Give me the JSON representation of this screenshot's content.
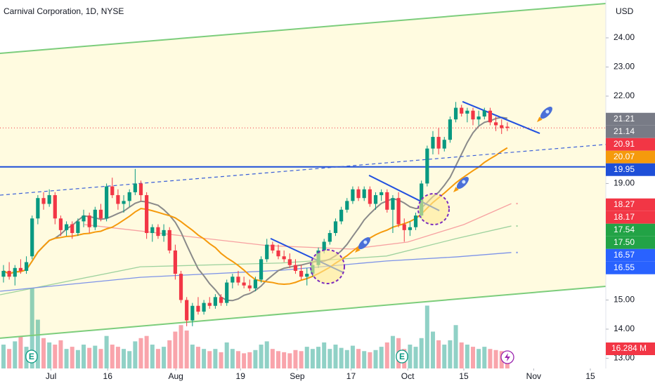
{
  "chart_data": {
    "type": "candlestick",
    "title": "Carnival Corporation, 1D, NYSE",
    "currency": "USD",
    "xlim": [
      -9.61,
      96.2
    ],
    "xticks": [
      {
        "value": -0.7,
        "label": "Jul"
      },
      {
        "value": 9.2,
        "label": "16"
      },
      {
        "value": 21.1,
        "label": "Aug"
      },
      {
        "value": 32.4,
        "label": "19"
      },
      {
        "value": 42.3,
        "label": "Sep"
      },
      {
        "value": 51.7,
        "label": "17"
      },
      {
        "value": 61.6,
        "label": "Oct"
      },
      {
        "value": 71.4,
        "label": "15"
      },
      {
        "value": 83.6,
        "label": "Nov"
      },
      {
        "value": 93.5,
        "label": "15"
      }
    ],
    "ylim": [
      12.65,
      25.3
    ],
    "yticks": [
      {
        "value": 13,
        "label": "13.00"
      },
      {
        "value": 14,
        "label": "14.00"
      },
      {
        "value": 15,
        "label": "15.00"
      },
      {
        "value": 19,
        "label": "19.00"
      },
      {
        "value": 22,
        "label": "22.00"
      },
      {
        "value": 23,
        "label": "23.00"
      },
      {
        "value": 24,
        "label": "24.00"
      }
    ],
    "up_color": "#089981",
    "down_color": "#f23645",
    "x": [
      -9,
      -8,
      -7,
      -6,
      -5,
      -4,
      -3,
      -2,
      -1,
      0,
      1,
      2,
      3,
      4,
      5,
      6,
      7,
      8,
      9,
      10,
      11,
      12,
      13,
      14,
      15,
      16,
      17,
      18,
      19,
      20,
      21,
      22,
      23,
      24,
      25,
      26,
      27,
      28,
      29,
      30,
      31,
      32,
      33,
      34,
      35,
      36,
      37,
      38,
      39,
      40,
      41,
      42,
      43,
      44,
      45,
      46,
      47,
      48,
      49,
      50,
      51,
      52,
      53,
      54,
      55,
      56,
      57,
      58,
      59,
      60,
      61,
      62,
      63,
      64,
      65,
      66,
      67,
      68,
      69,
      70,
      71,
      72,
      73,
      74,
      75,
      76,
      77,
      78,
      79
    ],
    "ohlc": [
      [
        15.8,
        16.2,
        15.6,
        16.0
      ],
      [
        16.0,
        16.3,
        15.7,
        15.8
      ],
      [
        15.8,
        16.2,
        15.5,
        16.1
      ],
      [
        16.1,
        16.4,
        15.9,
        16.0
      ],
      [
        16.0,
        16.5,
        15.9,
        16.3
      ],
      [
        16.5,
        17.9,
        16.4,
        17.8
      ],
      [
        17.8,
        18.6,
        17.6,
        18.5
      ],
      [
        18.5,
        18.7,
        18.1,
        18.3
      ],
      [
        18.3,
        18.8,
        18.2,
        18.6
      ],
      [
        18.6,
        18.7,
        17.6,
        17.8
      ],
      [
        17.8,
        17.9,
        17.2,
        17.4
      ],
      [
        17.4,
        17.7,
        17.2,
        17.6
      ],
      [
        17.6,
        17.7,
        17.1,
        17.3
      ],
      [
        17.3,
        17.8,
        17.2,
        17.7
      ],
      [
        17.7,
        18.1,
        17.5,
        17.9
      ],
      [
        17.9,
        18.0,
        17.3,
        17.5
      ],
      [
        17.5,
        18.2,
        17.4,
        18.1
      ],
      [
        18.1,
        18.3,
        17.7,
        17.8
      ],
      [
        17.8,
        19.0,
        17.7,
        18.9
      ],
      [
        18.9,
        19.2,
        18.5,
        18.6
      ],
      [
        18.6,
        18.8,
        18.1,
        18.3
      ],
      [
        18.3,
        18.6,
        18.0,
        18.4
      ],
      [
        18.4,
        18.8,
        18.2,
        18.7
      ],
      [
        18.7,
        19.5,
        18.6,
        19.0
      ],
      [
        19.0,
        19.1,
        18.4,
        18.6
      ],
      [
        18.6,
        18.7,
        17.1,
        17.3
      ],
      [
        17.3,
        17.6,
        17.0,
        17.5
      ],
      [
        17.5,
        17.6,
        17.1,
        17.2
      ],
      [
        17.2,
        17.6,
        17.0,
        17.4
      ],
      [
        17.4,
        17.5,
        16.6,
        16.7
      ],
      [
        16.7,
        16.9,
        15.7,
        15.9
      ],
      [
        15.9,
        16.0,
        14.9,
        15.0
      ],
      [
        15.0,
        15.1,
        14.1,
        14.3
      ],
      [
        14.3,
        14.9,
        14.1,
        14.8
      ],
      [
        14.8,
        15.1,
        14.5,
        14.6
      ],
      [
        14.6,
        15.0,
        14.5,
        14.9
      ],
      [
        14.9,
        15.1,
        14.7,
        14.8
      ],
      [
        14.8,
        15.2,
        14.7,
        15.1
      ],
      [
        15.1,
        15.2,
        14.8,
        14.9
      ],
      [
        14.9,
        15.7,
        14.8,
        15.6
      ],
      [
        15.6,
        15.9,
        15.4,
        15.8
      ],
      [
        15.8,
        16.0,
        15.5,
        15.6
      ],
      [
        15.6,
        15.8,
        15.4,
        15.5
      ],
      [
        15.5,
        15.7,
        15.3,
        15.4
      ],
      [
        15.4,
        15.8,
        15.3,
        15.7
      ],
      [
        15.7,
        16.5,
        15.6,
        16.4
      ],
      [
        16.4,
        17.1,
        16.3,
        16.9
      ],
      [
        16.9,
        17.0,
        16.6,
        16.7
      ],
      [
        16.7,
        16.9,
        16.4,
        16.5
      ],
      [
        16.5,
        16.7,
        16.3,
        16.4
      ],
      [
        16.4,
        16.6,
        16.1,
        16.2
      ],
      [
        16.2,
        16.4,
        15.9,
        16.0
      ],
      [
        16.0,
        16.2,
        15.7,
        15.8
      ],
      [
        15.8,
        16.1,
        15.5,
        15.9
      ],
      [
        15.9,
        16.3,
        15.8,
        16.2
      ],
      [
        16.2,
        16.8,
        16.1,
        16.7
      ],
      [
        16.7,
        17.1,
        16.6,
        17.0
      ],
      [
        17.0,
        17.4,
        16.9,
        17.3
      ],
      [
        17.3,
        17.8,
        17.2,
        17.7
      ],
      [
        17.7,
        18.2,
        17.6,
        18.1
      ],
      [
        18.1,
        18.5,
        18.0,
        18.4
      ],
      [
        18.4,
        18.9,
        18.3,
        18.8
      ],
      [
        18.8,
        18.9,
        18.4,
        18.5
      ],
      [
        18.5,
        18.9,
        18.4,
        18.8
      ],
      [
        18.8,
        18.9,
        18.2,
        18.3
      ],
      [
        18.3,
        18.7,
        18.1,
        18.6
      ],
      [
        18.6,
        18.8,
        18.4,
        18.7
      ],
      [
        18.7,
        18.8,
        18.0,
        18.1
      ],
      [
        18.1,
        18.6,
        17.3,
        18.5
      ],
      [
        18.5,
        18.7,
        17.5,
        17.6
      ],
      [
        17.6,
        17.8,
        17.0,
        17.4
      ],
      [
        17.4,
        17.7,
        17.2,
        17.5
      ],
      [
        17.5,
        18.0,
        17.4,
        17.9
      ],
      [
        17.9,
        19.1,
        17.8,
        19.0
      ],
      [
        19.0,
        20.3,
        18.9,
        20.2
      ],
      [
        20.2,
        20.8,
        20.0,
        20.6
      ],
      [
        20.6,
        20.9,
        20.0,
        20.2
      ],
      [
        20.2,
        20.6,
        20.1,
        20.5
      ],
      [
        20.5,
        21.3,
        20.4,
        21.2
      ],
      [
        21.2,
        21.8,
        21.1,
        21.6
      ],
      [
        21.6,
        21.7,
        21.3,
        21.4
      ],
      [
        21.4,
        21.6,
        21.1,
        21.5
      ],
      [
        21.5,
        21.6,
        21.0,
        21.2
      ],
      [
        21.2,
        21.5,
        21.0,
        21.3
      ],
      [
        21.3,
        21.6,
        21.2,
        21.5
      ],
      [
        21.5,
        21.6,
        21.0,
        21.1
      ],
      [
        21.1,
        21.3,
        20.8,
        21.0
      ],
      [
        21.0,
        21.2,
        20.7,
        20.9
      ],
      [
        20.95,
        21.1,
        20.8,
        20.91
      ]
    ],
    "volume": {
      "vlim": [
        0,
        340
      ],
      "values": [
        22,
        18,
        25,
        30,
        20,
        74,
        45,
        28,
        24,
        22,
        26,
        18,
        20,
        17,
        22,
        19,
        21,
        18,
        30,
        22,
        20,
        18,
        16,
        25,
        28,
        30,
        22,
        18,
        20,
        26,
        34,
        40,
        35,
        22,
        20,
        18,
        16,
        18,
        15,
        24,
        18,
        16,
        14,
        15,
        17,
        22,
        25,
        18,
        16,
        15,
        14,
        17,
        16,
        20,
        18,
        20,
        24,
        18,
        22,
        19,
        17,
        21,
        18,
        16,
        15,
        17,
        20,
        24,
        30,
        28,
        18,
        22,
        20,
        28,
        58,
        34,
        26,
        22,
        26,
        40,
        24,
        22,
        20,
        18,
        20,
        18,
        17,
        16,
        16.284
      ],
      "last_label": "16.284 M"
    },
    "moving_averages": [
      {
        "color": "#f7a1a1",
        "x": [
          5.1,
          21.1,
          37.0,
          51.7,
          61.6,
          71.4,
          79.7
        ],
        "values": [
          17.59,
          17.23,
          16.87,
          16.75,
          16.99,
          17.59,
          18.31
        ]
      },
      {
        "color": "#9ed29e",
        "x": [
          -9.6,
          14.9,
          39.5,
          57.9,
          70.1,
          79.7
        ],
        "values": [
          15.18,
          16.14,
          16.27,
          16.51,
          17.11,
          17.54
        ]
      },
      {
        "color": "#7d93e8",
        "x": [
          -9.6,
          14.9,
          39.5,
          57.9,
          70.1,
          79.7
        ],
        "values": [
          15.3,
          15.78,
          16.02,
          16.34,
          16.48,
          16.63
        ]
      }
    ],
    "lines": [
      {
        "color": "#7ccd7c",
        "dash": false,
        "x": [
          -9.61,
          96.2
        ],
        "values": [
          23.47,
          25.18
        ]
      },
      {
        "color": "#7ccd7c",
        "dash": false,
        "x": [
          -9.61,
          96.2
        ],
        "values": [
          13.69,
          15.47
        ]
      },
      {
        "color": "#1e4fd8",
        "dash": false,
        "x": [
          -9.61,
          96.2
        ],
        "values": [
          19.57,
          19.57
        ]
      },
      {
        "color": "#3a5fd8",
        "dash": true,
        "x": [
          -9.61,
          96.2
        ],
        "values": [
          18.6,
          20.34
        ]
      },
      {
        "color": "#2150e0",
        "dash": false,
        "x": [
          37.65,
          50.3
        ],
        "values": [
          17.11,
          15.95
        ]
      },
      {
        "color": "#2150e0",
        "dash": false,
        "x": [
          54.84,
          67.12
        ],
        "values": [
          19.28,
          18.07
        ]
      },
      {
        "color": "#2150e0",
        "dash": false,
        "x": [
          71.17,
          84.67
        ],
        "values": [
          21.81,
          20.72
        ]
      }
    ],
    "price_labels": [
      {
        "value": 21.21,
        "label": "21.21",
        "color": "#787b86"
      },
      {
        "value": 21.14,
        "label": "21.14",
        "color": "#787b86"
      },
      {
        "value": 20.91,
        "label": "20.91",
        "color": "#f23645"
      },
      {
        "value": 20.07,
        "label": "20.07",
        "color": "#f59a0c"
      },
      {
        "value": 19.95,
        "label": "19.95",
        "color": "#1e4fd8"
      },
      {
        "value": 18.27,
        "label": "18.27",
        "color": "#f23645"
      },
      {
        "value": 18.17,
        "label": "18.17",
        "color": "#f23645"
      },
      {
        "value": 17.54,
        "label": "17.54",
        "color": "#22a346"
      },
      {
        "value": 17.5,
        "label": "17.50",
        "color": "#22a346"
      },
      {
        "value": 16.57,
        "label": "16.57",
        "color": "#2962ff"
      },
      {
        "value": 16.55,
        "label": "16.55",
        "color": "#2962ff"
      }
    ],
    "events": [
      {
        "x": -4.1,
        "label": "E"
      },
      {
        "x": 60.6,
        "label": "E"
      }
    ]
  }
}
